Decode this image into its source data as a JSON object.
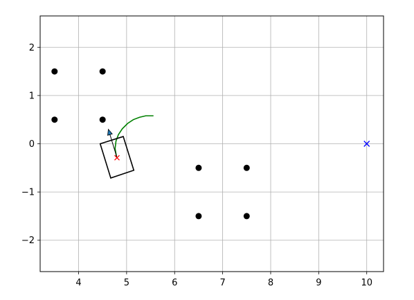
{
  "chart_data": {
    "type": "scatter",
    "title": "",
    "xlabel": "",
    "ylabel": "",
    "xlim": [
      3.2,
      10.35
    ],
    "ylim": [
      -2.65,
      2.65
    ],
    "grid": true,
    "x_ticks": [
      {
        "value": 4,
        "label": "4"
      },
      {
        "value": 5,
        "label": "5"
      },
      {
        "value": 6,
        "label": "6"
      },
      {
        "value": 7,
        "label": "7"
      },
      {
        "value": 8,
        "label": "8"
      },
      {
        "value": 9,
        "label": "9"
      },
      {
        "value": 10,
        "label": "10"
      }
    ],
    "y_ticks": [
      {
        "value": 2,
        "label": "2"
      },
      {
        "value": 1,
        "label": "1"
      },
      {
        "value": 0,
        "label": "0"
      },
      {
        "value": -1,
        "label": "−1"
      },
      {
        "value": -2,
        "label": "−2"
      }
    ],
    "obstacles": {
      "color": "#000000",
      "points": [
        {
          "x": 3.5,
          "y": 1.5
        },
        {
          "x": 4.5,
          "y": 1.5
        },
        {
          "x": 3.5,
          "y": 0.5
        },
        {
          "x": 4.5,
          "y": 0.5
        },
        {
          "x": 6.5,
          "y": -0.5
        },
        {
          "x": 7.5,
          "y": -0.5
        },
        {
          "x": 6.5,
          "y": -1.5
        },
        {
          "x": 7.5,
          "y": -1.5
        }
      ]
    },
    "goal": {
      "x": 10.0,
      "y": 0.0,
      "color": "#0000ff"
    },
    "robot": {
      "color": "#000000",
      "corners": [
        {
          "x": 4.45,
          "y": 0.0
        },
        {
          "x": 4.93,
          "y": 0.15
        },
        {
          "x": 5.15,
          "y": -0.55
        },
        {
          "x": 4.67,
          "y": -0.71
        }
      ],
      "center": {
        "x": 4.8,
        "y": -0.29,
        "color": "#ff0000"
      },
      "heading_arrow": {
        "from": {
          "x": 4.8,
          "y": -0.29
        },
        "to": {
          "x": 4.62,
          "y": 0.3
        },
        "color": "#1f77b4"
      }
    },
    "trajectory": {
      "color": "#008000",
      "points": [
        {
          "x": 4.79,
          "y": -0.27
        },
        {
          "x": 4.76,
          "y": -0.1
        },
        {
          "x": 4.78,
          "y": 0.06
        },
        {
          "x": 4.83,
          "y": 0.19
        },
        {
          "x": 4.91,
          "y": 0.31
        },
        {
          "x": 5.02,
          "y": 0.42
        },
        {
          "x": 5.14,
          "y": 0.5
        },
        {
          "x": 5.27,
          "y": 0.55
        },
        {
          "x": 5.4,
          "y": 0.58
        },
        {
          "x": 5.56,
          "y": 0.58
        }
      ]
    }
  }
}
